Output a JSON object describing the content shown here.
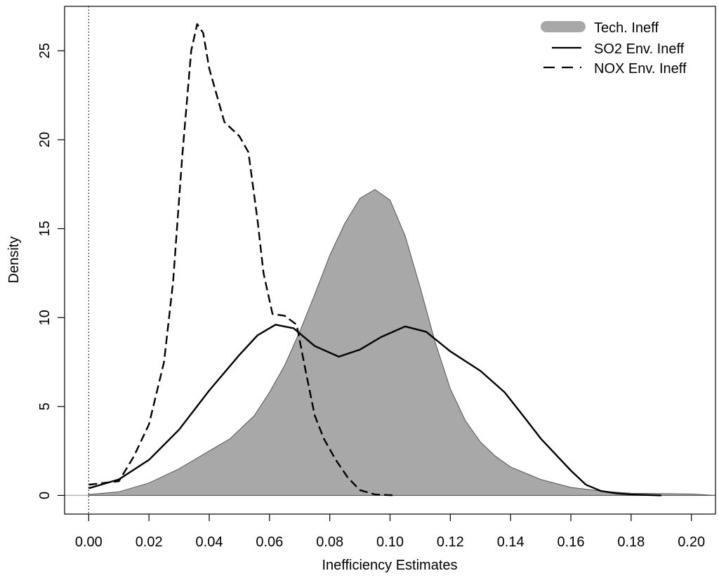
{
  "chart_data": {
    "type": "area",
    "xlabel": "Inefficiency Estimates",
    "ylabel": "Density",
    "xlim": [
      -0.008,
      0.208
    ],
    "ylim": [
      -1.05,
      27.5
    ],
    "x_ticks": [
      "0.00",
      "0.02",
      "0.04",
      "0.06",
      "0.08",
      "0.10",
      "0.12",
      "0.14",
      "0.16",
      "0.18",
      "0.20"
    ],
    "y_ticks": [
      "0",
      "5",
      "10",
      "15",
      "20",
      "25"
    ],
    "x_tick_values": [
      0.0,
      0.02,
      0.04,
      0.06,
      0.08,
      0.1,
      0.12,
      0.14,
      0.16,
      0.18,
      0.2
    ],
    "y_tick_values": [
      0,
      5,
      10,
      15,
      20,
      25
    ],
    "reference_line": {
      "x": 0.0,
      "style": "dotted"
    },
    "legend": {
      "placement": "top-right"
    },
    "series": [
      {
        "name": "Tech. Ineff",
        "style": "filled",
        "color": "#a8a8a8",
        "points": [
          [
            0.0,
            0.05
          ],
          [
            0.01,
            0.2
          ],
          [
            0.02,
            0.7
          ],
          [
            0.03,
            1.5
          ],
          [
            0.04,
            2.5
          ],
          [
            0.047,
            3.2
          ],
          [
            0.055,
            4.5
          ],
          [
            0.06,
            5.8
          ],
          [
            0.065,
            7.3
          ],
          [
            0.07,
            9.2
          ],
          [
            0.075,
            11.3
          ],
          [
            0.08,
            13.5
          ],
          [
            0.085,
            15.3
          ],
          [
            0.09,
            16.7
          ],
          [
            0.095,
            17.2
          ],
          [
            0.1,
            16.6
          ],
          [
            0.105,
            14.6
          ],
          [
            0.11,
            11.7
          ],
          [
            0.115,
            8.6
          ],
          [
            0.12,
            6.0
          ],
          [
            0.125,
            4.2
          ],
          [
            0.13,
            3.0
          ],
          [
            0.135,
            2.2
          ],
          [
            0.14,
            1.6
          ],
          [
            0.15,
            0.9
          ],
          [
            0.16,
            0.45
          ],
          [
            0.17,
            0.25
          ],
          [
            0.18,
            0.12
          ],
          [
            0.19,
            0.1
          ],
          [
            0.2,
            0.08
          ],
          [
            0.208,
            0.0
          ]
        ]
      },
      {
        "name": "SO2 Env. Ineff",
        "style": "solid",
        "color": "#000000",
        "points": [
          [
            0.0,
            0.4
          ],
          [
            0.01,
            0.9
          ],
          [
            0.02,
            2.0
          ],
          [
            0.03,
            3.7
          ],
          [
            0.04,
            5.9
          ],
          [
            0.05,
            7.9
          ],
          [
            0.056,
            9.0
          ],
          [
            0.062,
            9.6
          ],
          [
            0.068,
            9.4
          ],
          [
            0.075,
            8.4
          ],
          [
            0.083,
            7.8
          ],
          [
            0.09,
            8.2
          ],
          [
            0.097,
            8.9
          ],
          [
            0.105,
            9.5
          ],
          [
            0.112,
            9.2
          ],
          [
            0.12,
            8.1
          ],
          [
            0.13,
            7.0
          ],
          [
            0.138,
            5.8
          ],
          [
            0.145,
            4.3
          ],
          [
            0.15,
            3.2
          ],
          [
            0.16,
            1.4
          ],
          [
            0.165,
            0.6
          ],
          [
            0.17,
            0.25
          ],
          [
            0.175,
            0.12
          ],
          [
            0.18,
            0.05
          ],
          [
            0.19,
            0.0
          ]
        ]
      },
      {
        "name": "NOX Env. Ineff",
        "style": "dashed",
        "color": "#000000",
        "points": [
          [
            0.0,
            0.6
          ],
          [
            0.005,
            0.7
          ],
          [
            0.01,
            0.8
          ],
          [
            0.015,
            2.2
          ],
          [
            0.02,
            4.0
          ],
          [
            0.025,
            7.5
          ],
          [
            0.028,
            12.0
          ],
          [
            0.031,
            19.0
          ],
          [
            0.034,
            25.0
          ],
          [
            0.036,
            26.5
          ],
          [
            0.038,
            26.0
          ],
          [
            0.04,
            24.0
          ],
          [
            0.045,
            21.0
          ],
          [
            0.05,
            20.2
          ],
          [
            0.053,
            19.3
          ],
          [
            0.056,
            15.5
          ],
          [
            0.058,
            12.5
          ],
          [
            0.061,
            10.2
          ],
          [
            0.065,
            10.1
          ],
          [
            0.069,
            9.6
          ],
          [
            0.072,
            7.0
          ],
          [
            0.075,
            4.5
          ],
          [
            0.078,
            3.2
          ],
          [
            0.082,
            2.0
          ],
          [
            0.086,
            1.0
          ],
          [
            0.09,
            0.3
          ],
          [
            0.095,
            0.05
          ],
          [
            0.102,
            0.0
          ]
        ]
      }
    ]
  }
}
